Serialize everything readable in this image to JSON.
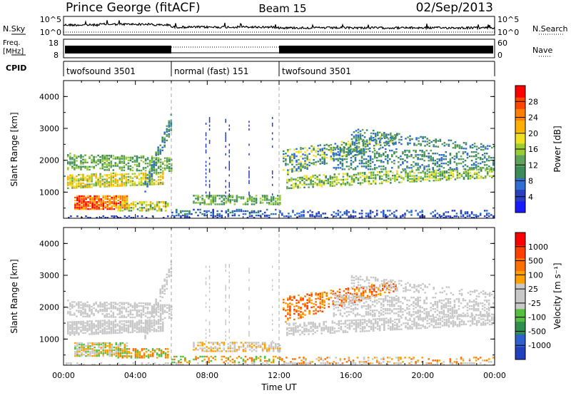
{
  "header": {
    "station": "Prince George (fitACF)",
    "beam": "Beam 15",
    "date": "02/Sep/2013"
  },
  "top_panels": {
    "nsky_label": "N.Sky",
    "nsearch_label": "N.Search",
    "nsky_ticks": [
      "10^5",
      "10^0"
    ],
    "freq_label_1": "Freq.",
    "freq_label_2": "[MHz]",
    "freq_ticks": [
      "18",
      "8"
    ],
    "nave_label": "Nave",
    "nave_ticks": [
      "60",
      "0"
    ],
    "cpid_label": "CPID",
    "cpid_segments": [
      {
        "label": "twofsound 3501",
        "start_hour": 0,
        "end_hour": 6
      },
      {
        "label": "normal (fast) 151",
        "start_hour": 6,
        "end_hour": 12
      },
      {
        "label": "twofsound 3501",
        "start_hour": 12,
        "end_hour": 24
      }
    ]
  },
  "chart_data": [
    {
      "type": "heatmap",
      "title": "",
      "xlabel": "",
      "ylabel": "Slant Range [km]",
      "xlim": [
        0,
        24
      ],
      "ylim": [
        180,
        4500
      ],
      "y_ticks": [
        1000,
        2000,
        3000,
        4000
      ],
      "colorbar_label": "Power [dB]",
      "colorbar_ticks": [
        "28",
        "24",
        "20",
        "16",
        "12",
        "8",
        "4"
      ],
      "colors": [
        "#1a1aff",
        "#2a3fc0",
        "#2f6fd2",
        "#3c8c5a",
        "#5fa35a",
        "#9acd32",
        "#f0e020",
        "#ffb000",
        "#ff8000",
        "#ff4500",
        "#ff0000"
      ]
    },
    {
      "type": "heatmap",
      "title": "",
      "xlabel": "Time UT",
      "ylabel": "Slant Range [km]",
      "xlim": [
        0,
        24
      ],
      "ylim": [
        180,
        4500
      ],
      "y_ticks": [
        1000,
        2000,
        3000,
        4000
      ],
      "x_ticks": [
        "00:00",
        "04:00",
        "08:00",
        "12:00",
        "16:00",
        "20:00",
        "00:00"
      ],
      "colorbar_label": "Velocity [m s⁻¹]",
      "colorbar_ticks": [
        "1000",
        "500",
        "100",
        "25",
        "-25",
        "-100",
        "-500",
        "-1000"
      ],
      "colors": [
        "#2040c0",
        "#3060d0",
        "#2f8f4f",
        "#55c040",
        "#c8c8c8",
        "#c8c8c8",
        "#ffa000",
        "#ff7000",
        "#ff4000",
        "#ff0000"
      ]
    }
  ]
}
